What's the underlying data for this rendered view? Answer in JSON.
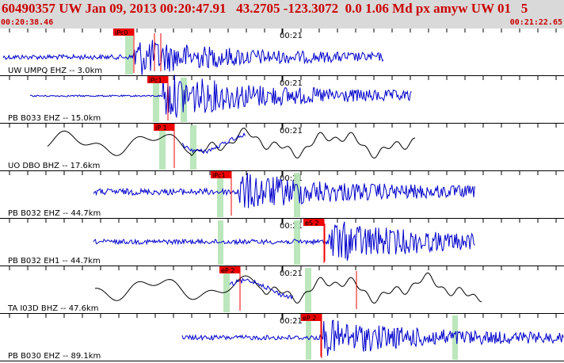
{
  "header": {
    "title": "60490357 UW Jan 09, 2013 00:20:47.91   43.2705 -123.3072  0.0 1.06 Md px amyw UW 01   5",
    "start_time": "00:20:38.46",
    "end_time": "00:21:22.65"
  },
  "colors": {
    "header_bg": "#d9d9d9",
    "title": "#cc0000",
    "trace": "#0000cc",
    "pick": "#ee0000",
    "window": "#b5e3b5",
    "filtered": "#000000"
  },
  "traces": [
    {
      "label": "UW UMPQ EHZ -- 3.0km",
      "tick_label": "00:21",
      "picks": [
        "iPc0"
      ]
    },
    {
      "label": "PB B033 EHZ -- 15.0km",
      "tick_label": "00:21",
      "picks": [
        "iPc1"
      ]
    },
    {
      "label": "UO DBO BHZ -- 17.6km",
      "tick_label": "00:21",
      "picks": [
        "iP 1"
      ]
    },
    {
      "label": "PB B032 EHZ -- 44.7km",
      "tick_label": "00:21",
      "picks": [
        "iPc1"
      ]
    },
    {
      "label": "PB B032 EH1 -- 44.7km",
      "tick_label": "00:21",
      "picks": [
        "eS 2"
      ]
    },
    {
      "label": "TA I03D BHZ -- 47.6km",
      "tick_label": "00:21",
      "picks": [
        "eP 2"
      ]
    },
    {
      "label": "PB B030 EHZ -- 89.1km",
      "tick_label": "00:21",
      "picks": [
        "eP 2"
      ]
    }
  ]
}
